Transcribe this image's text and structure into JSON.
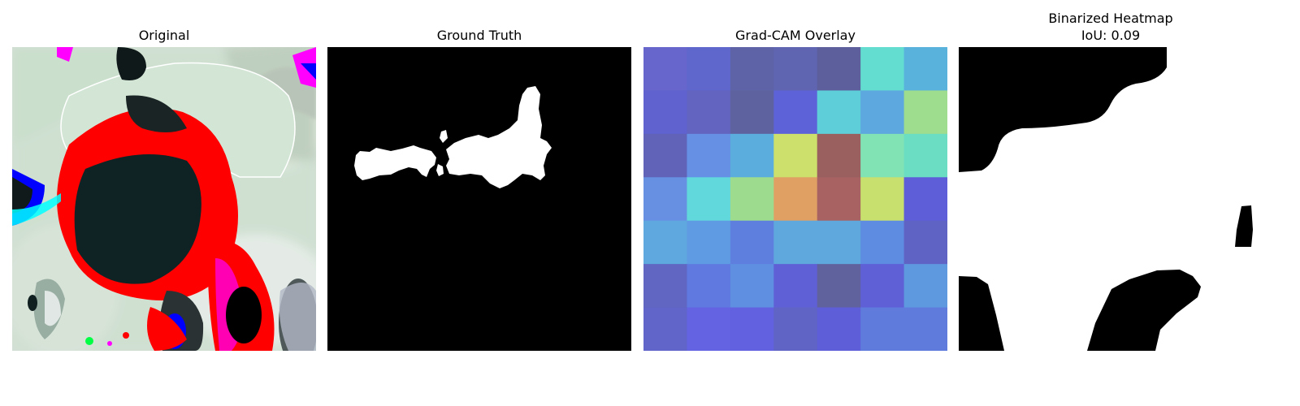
{
  "figure": {
    "panels": [
      {
        "id": "original",
        "title": "Original"
      },
      {
        "id": "ground-truth",
        "title": "Ground Truth"
      },
      {
        "id": "gradcam",
        "title": "Grad-CAM Overlay"
      },
      {
        "id": "binarized",
        "title": "Binarized Heatmap",
        "subtitle": "IoU: 0.09"
      }
    ],
    "gradcam_grid": {
      "rows": 7,
      "cols": 7,
      "colors": [
        [
          "#6666cc",
          "#5f66cc",
          "#5e63a8",
          "#5f65b0",
          "#5c5f9b",
          "#62ddd0",
          "#58b2dc"
        ],
        [
          "#6062cf",
          "#6364bf",
          "#5e639f",
          "#5e62d8",
          "#5ecfd8",
          "#5da8df",
          "#9edc8e"
        ],
        [
          "#6163b8",
          "#6590e4",
          "#5aaddd",
          "#cde06b",
          "#9a6060",
          "#81e2b4",
          "#6bddc2"
        ],
        [
          "#6790e3",
          "#61d8dc",
          "#9ddc8e",
          "#e0a064",
          "#a86262",
          "#c7e06e",
          "#5d5ed8"
        ],
        [
          "#5ea8df",
          "#5e9be2",
          "#5f7fde",
          "#5ea8dd",
          "#5ea8dd",
          "#5e8ce0",
          "#5f63c4"
        ],
        [
          "#6066c2",
          "#5f79e0",
          "#5e8fe0",
          "#6060d6",
          "#60629e",
          "#5f5fd6",
          "#5e98df"
        ],
        [
          "#6164c8",
          "#6464e2",
          "#6262e0",
          "#6064c4",
          "#5e5ed8",
          "#5f7bdc",
          "#5f7bdc"
        ]
      ]
    },
    "colors": {
      "mask_foreground": "#ffffff",
      "mask_background": "#000000"
    }
  }
}
